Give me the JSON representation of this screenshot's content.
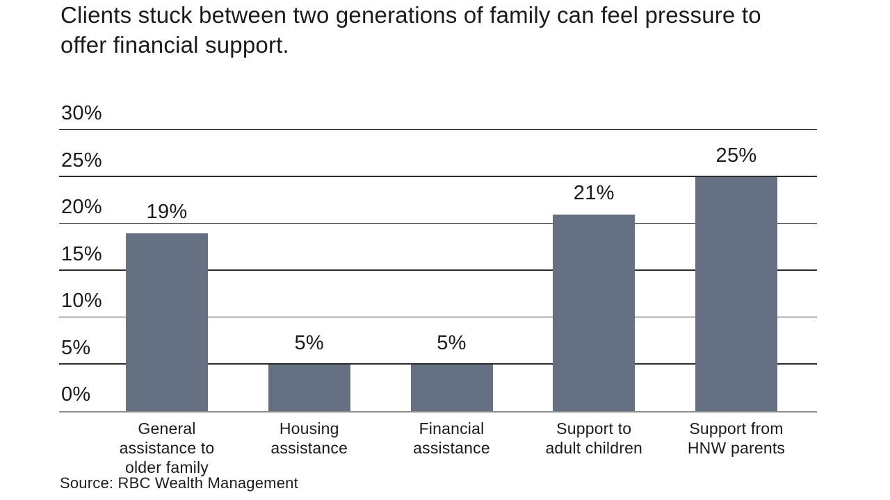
{
  "header": {
    "title": "Clients stuck between two generations of family can feel pressure to offer financial support."
  },
  "chart_data": {
    "type": "bar",
    "title": "Clients stuck between two generations of family can feel pressure to offer financial support.",
    "categories": [
      "General assistance to older family",
      "Housing assistance",
      "Financial assistance",
      "Support to adult children",
      "Support from HNW parents"
    ],
    "category_lines": [
      [
        "General",
        "assistance to",
        "older family"
      ],
      [
        "Housing",
        "assistance"
      ],
      [
        "Financial",
        "assistance"
      ],
      [
        "Support to",
        "adult children"
      ],
      [
        "Support from",
        "HNW parents"
      ]
    ],
    "values": [
      19,
      5,
      5,
      21,
      25
    ],
    "value_labels": [
      "19%",
      "5%",
      "5%",
      "21%",
      "25%"
    ],
    "xlabel": "",
    "ylabel": "",
    "ylim": [
      0,
      30
    ],
    "yticks": [
      0,
      5,
      10,
      15,
      20,
      25,
      30
    ],
    "ytick_labels": [
      "0%",
      "5%",
      "10%",
      "15%",
      "20%",
      "25%",
      "30%"
    ],
    "grid": true,
    "legend": false,
    "bar_color": "#657183",
    "gridline_color": "#2b2b2b",
    "baseline_color": "#8d8d8d",
    "label_color": "#1a1a1a"
  },
  "footer": {
    "source": "Source: RBC Wealth Management"
  }
}
